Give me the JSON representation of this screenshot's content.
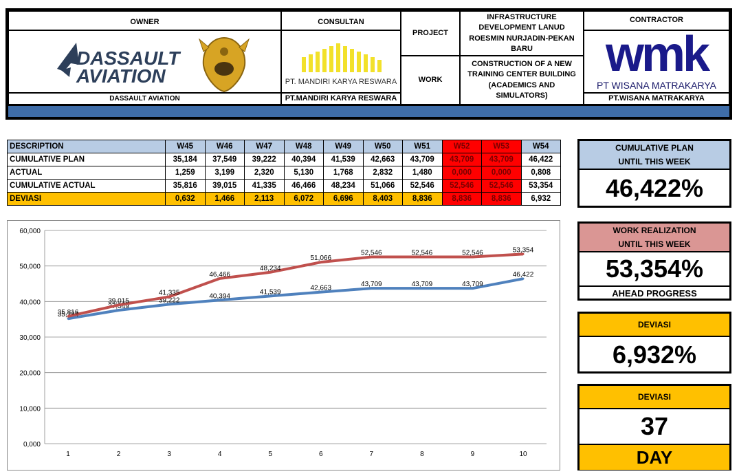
{
  "header": {
    "owner_title": "OWNER",
    "owner_logo_line1": "DASSAULT",
    "owner_logo_line2": "AVIATION",
    "owner_footer": "DASSAULT AVIATION",
    "consultant_title": "CONSULTAN",
    "consultant_logo_text": "PT. MANDIRI KARYA RESWARA",
    "consultant_footer": "PT.MANDIRI KARYA RESWARA",
    "project_label": "PROJECT",
    "project_value": "INFRASTRUCTURE DEVELOPMENT LANUD ROESMIN NURJADIN-PEKAN BARU",
    "work_label": "WORK",
    "work_value": "CONSTRUCTION OF A NEW TRAINING CENTER BUILDING (ACADEMICS AND SIMULATORS)",
    "contractor_title": "CONTRACTOR",
    "contractor_logo": "wmk",
    "contractor_logo_text": "PT WISANA MATRAKARYA",
    "contractor_footer": "PT.WISANA MATRAKARYA"
  },
  "table": {
    "desc_header": "DESCRIPTION",
    "weeks": [
      "W45",
      "W46",
      "W47",
      "W48",
      "W49",
      "W50",
      "W51",
      "W52",
      "W53",
      "W54"
    ],
    "highlight_weeks": [
      7,
      8
    ],
    "rows": [
      {
        "label": "CUMULATIVE PLAN",
        "values": [
          "35,184",
          "37,549",
          "39,222",
          "40,394",
          "41,539",
          "42,663",
          "43,709",
          "43,709",
          "43,709",
          "46,422"
        ]
      },
      {
        "label": "ACTUAL",
        "values": [
          "1,259",
          "3,199",
          "2,320",
          "5,130",
          "1,768",
          "2,832",
          "1,480",
          "0,000",
          "0,000",
          "0,808"
        ]
      },
      {
        "label": "CUMULATIVE ACTUAL",
        "values": [
          "35,816",
          "39,015",
          "41,335",
          "46,466",
          "48,234",
          "51,066",
          "52,546",
          "52,546",
          "52,546",
          "53,354"
        ]
      },
      {
        "label": "DEVIASI",
        "values": [
          "0,632",
          "1,466",
          "2,113",
          "6,072",
          "6,696",
          "8,403",
          "8,836",
          "8,836",
          "8,836",
          "6,932"
        ]
      }
    ]
  },
  "chart_data": {
    "type": "line",
    "x": [
      1,
      2,
      3,
      4,
      5,
      6,
      7,
      8,
      9,
      10
    ],
    "ylim": [
      0,
      60
    ],
    "yticks": [
      "0,000",
      "10,000",
      "20,000",
      "30,000",
      "40,000",
      "50,000",
      "60,000"
    ],
    "grid": true,
    "series": [
      {
        "key": "plan",
        "color": "#4f81bd",
        "values": [
          35.184,
          37.549,
          39.222,
          40.394,
          41.539,
          42.663,
          43.709,
          43.709,
          43.709,
          46.422
        ],
        "labels": [
          "35,184",
          "37,549",
          "39,222",
          "40,394",
          "41,539",
          "42,663",
          "43,709",
          "43,709",
          "43,709",
          "46,422"
        ]
      },
      {
        "key": "actual",
        "color": "#c0504d",
        "values": [
          35.816,
          39.015,
          41.335,
          46.466,
          48.234,
          51.066,
          52.546,
          52.546,
          52.546,
          53.354
        ],
        "labels": [
          "35,816",
          "39,015",
          "41,335",
          "46,466",
          "48,234",
          "51,066",
          "52,546",
          "52,546",
          "52,546",
          "53,354"
        ]
      }
    ]
  },
  "cards": {
    "plan_title1": "CUMULATIVE PLAN",
    "plan_title2": "UNTIL THIS WEEK",
    "plan_value": "46,422%",
    "work_title1": "WORK REALIZATION",
    "work_title2": "UNTIL THIS WEEK",
    "work_value": "53,354%",
    "work_status": "AHEAD PROGRESS",
    "dev_title": "DEVIASI",
    "dev_value": "6,932%",
    "days_title": "DEVIASI",
    "days_value": "37",
    "days_unit": "DAY"
  },
  "colors": {
    "blue_header": "#b8cce4",
    "pink_header": "#da9694",
    "orange": "#ffc000",
    "red": "#ff0000",
    "bar_blue": "#3f6da8"
  }
}
